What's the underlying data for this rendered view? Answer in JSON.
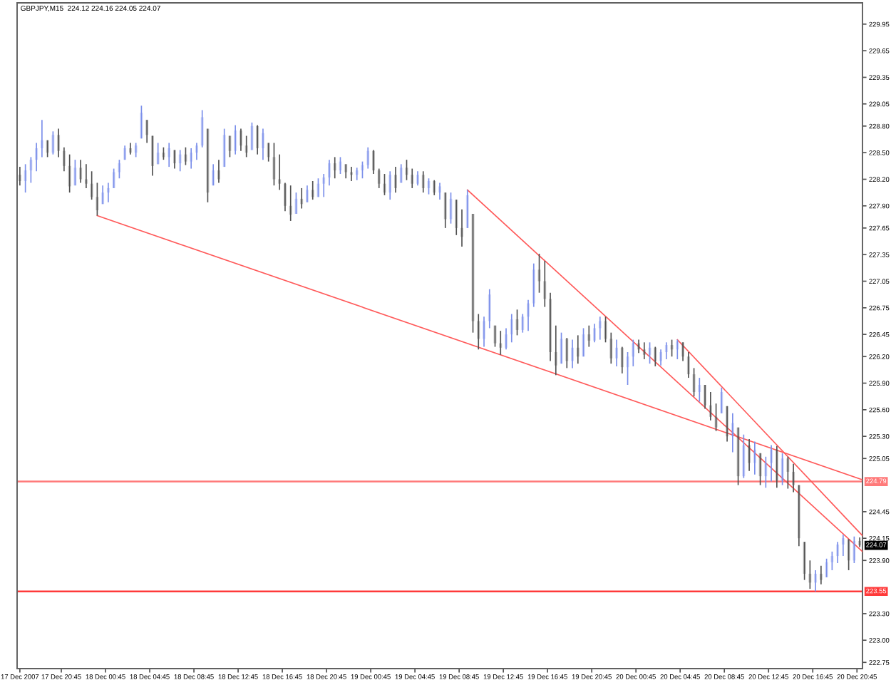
{
  "chart_data": {
    "type": "candlestick",
    "title": "GBPJPY,M15  224.12 224.16 224.05 224.07",
    "xlim": [
      "2007-12-17T16:45",
      "2007-12-20T21:15"
    ],
    "xticks": [
      {
        "value": "2007-12-17T17:00",
        "label": "17 Dec 2007"
      },
      {
        "value": "2007-12-17T20:45",
        "label": "17 Dec 20:45"
      },
      {
        "value": "2007-12-18T00:45",
        "label": "18 Dec 00:45"
      },
      {
        "value": "2007-12-18T04:45",
        "label": "18 Dec 04:45"
      },
      {
        "value": "2007-12-18T08:45",
        "label": "18 Dec 08:45"
      },
      {
        "value": "2007-12-18T12:45",
        "label": "18 Dec 12:45"
      },
      {
        "value": "2007-12-18T16:45",
        "label": "18 Dec 16:45"
      },
      {
        "value": "2007-12-18T20:45",
        "label": "18 Dec 20:45"
      },
      {
        "value": "2007-12-19T00:45",
        "label": "19 Dec 00:45"
      },
      {
        "value": "2007-12-19T04:45",
        "label": "19 Dec 04:45"
      },
      {
        "value": "2007-12-19T08:45",
        "label": "19 Dec 08:45"
      },
      {
        "value": "2007-12-19T12:45",
        "label": "19 Dec 12:45"
      },
      {
        "value": "2007-12-19T16:45",
        "label": "19 Dec 16:45"
      },
      {
        "value": "2007-12-19T20:45",
        "label": "19 Dec 20:45"
      },
      {
        "value": "2007-12-20T00:45",
        "label": "20 Dec 00:45"
      },
      {
        "value": "2007-12-20T04:45",
        "label": "20 Dec 04:45"
      },
      {
        "value": "2007-12-20T08:45",
        "label": "20 Dec 08:45"
      },
      {
        "value": "2007-12-20T12:45",
        "label": "20 Dec 12:45"
      },
      {
        "value": "2007-12-20T16:45",
        "label": "20 Dec 16:45"
      },
      {
        "value": "2007-12-20T20:45",
        "label": "20 Dec 20:45"
      }
    ],
    "ylim": [
      222.68,
      230.19
    ],
    "yticks": [
      {
        "value": 229.95,
        "label": "229.95"
      },
      {
        "value": 229.65,
        "label": "229.65"
      },
      {
        "value": 229.35,
        "label": "229.35"
      },
      {
        "value": 229.05,
        "label": "229.05"
      },
      {
        "value": 228.8,
        "label": "228.80"
      },
      {
        "value": 228.5,
        "label": "228.50"
      },
      {
        "value": 228.2,
        "label": "228.20"
      },
      {
        "value": 227.9,
        "label": "227.90"
      },
      {
        "value": 227.65,
        "label": "227.65"
      },
      {
        "value": 227.35,
        "label": "227.35"
      },
      {
        "value": 227.05,
        "label": "227.05"
      },
      {
        "value": 226.75,
        "label": "226.75"
      },
      {
        "value": 226.45,
        "label": "226.45"
      },
      {
        "value": 226.2,
        "label": "226.20"
      },
      {
        "value": 225.9,
        "label": "225.90"
      },
      {
        "value": 225.6,
        "label": "225.60"
      },
      {
        "value": 225.3,
        "label": "225.30"
      },
      {
        "value": 225.05,
        "label": "225.05"
      },
      {
        "value": 224.45,
        "label": "224.45"
      },
      {
        "value": 224.15,
        "label": "224.15"
      },
      {
        "value": 223.9,
        "label": "223.90"
      },
      {
        "value": 223.3,
        "label": "223.30"
      },
      {
        "value": 223.0,
        "label": "223.00"
      },
      {
        "value": 222.75,
        "label": "222.75"
      }
    ],
    "ref_lines": [
      {
        "axis": "y",
        "value": 224.79,
        "label": "224.79",
        "color": "#ff7a7a"
      },
      {
        "axis": "y",
        "value": 223.55,
        "label": "223.55",
        "color": "#ff3a3a"
      }
    ],
    "annotations": [
      {
        "text": "224.07",
        "y": 224.07
      }
    ],
    "series": [
      {
        "x": [
          "2007-12-17T17:00",
          "2007-12-17T17:30",
          "2007-12-17T18:00",
          "2007-12-17T18:30",
          "2007-12-17T19:00",
          "2007-12-17T19:30",
          "2007-12-17T20:00",
          "2007-12-17T20:30",
          "2007-12-17T21:00",
          "2007-12-17T21:30",
          "2007-12-17T22:00",
          "2007-12-17T22:30",
          "2007-12-17T23:00",
          "2007-12-17T23:30",
          "2007-12-18T00:00",
          "2007-12-18T00:30",
          "2007-12-18T01:00",
          "2007-12-18T01:30",
          "2007-12-18T02:00",
          "2007-12-18T02:30",
          "2007-12-18T03:00",
          "2007-12-18T03:30",
          "2007-12-18T04:00",
          "2007-12-18T04:30",
          "2007-12-18T05:00",
          "2007-12-18T05:30",
          "2007-12-18T06:00",
          "2007-12-18T06:30",
          "2007-12-18T07:00",
          "2007-12-18T07:30",
          "2007-12-18T08:00",
          "2007-12-18T08:30",
          "2007-12-18T09:00",
          "2007-12-18T09:30",
          "2007-12-18T10:00",
          "2007-12-18T10:30",
          "2007-12-18T11:00",
          "2007-12-18T11:30",
          "2007-12-18T12:00",
          "2007-12-18T12:30",
          "2007-12-18T13:00",
          "2007-12-18T13:30",
          "2007-12-18T14:00",
          "2007-12-18T14:30",
          "2007-12-18T15:00",
          "2007-12-18T15:30",
          "2007-12-18T16:00",
          "2007-12-18T16:30",
          "2007-12-18T17:00",
          "2007-12-18T17:30",
          "2007-12-18T18:00",
          "2007-12-18T18:30",
          "2007-12-18T19:00",
          "2007-12-18T19:30",
          "2007-12-18T20:00",
          "2007-12-18T20:30",
          "2007-12-18T21:00",
          "2007-12-18T21:30",
          "2007-12-18T22:00",
          "2007-12-18T22:30",
          "2007-12-18T23:00",
          "2007-12-18T23:30",
          "2007-12-19T00:00",
          "2007-12-19T00:30",
          "2007-12-19T01:00",
          "2007-12-19T01:30",
          "2007-12-19T02:00",
          "2007-12-19T02:30",
          "2007-12-19T03:00",
          "2007-12-19T03:30",
          "2007-12-19T04:00",
          "2007-12-19T04:30",
          "2007-12-19T05:00",
          "2007-12-19T05:30",
          "2007-12-19T06:00",
          "2007-12-19T06:30",
          "2007-12-19T07:00",
          "2007-12-19T07:30",
          "2007-12-19T08:00",
          "2007-12-19T08:30",
          "2007-12-19T09:00",
          "2007-12-19T09:30",
          "2007-12-19T10:00",
          "2007-12-19T10:30",
          "2007-12-19T11:00",
          "2007-12-19T11:30",
          "2007-12-19T12:00",
          "2007-12-19T12:30",
          "2007-12-19T13:00",
          "2007-12-19T13:30",
          "2007-12-19T14:00",
          "2007-12-19T14:30",
          "2007-12-19T15:00",
          "2007-12-19T15:30",
          "2007-12-19T16:00",
          "2007-12-19T16:30",
          "2007-12-19T17:00",
          "2007-12-19T17:30",
          "2007-12-19T18:00",
          "2007-12-19T18:30",
          "2007-12-19T19:00",
          "2007-12-19T19:30",
          "2007-12-19T20:00",
          "2007-12-19T20:30",
          "2007-12-19T21:00",
          "2007-12-19T21:30",
          "2007-12-19T22:00",
          "2007-12-19T22:30",
          "2007-12-19T23:00",
          "2007-12-19T23:30",
          "2007-12-20T00:00",
          "2007-12-20T00:30",
          "2007-12-20T01:00",
          "2007-12-20T01:30",
          "2007-12-20T02:00",
          "2007-12-20T02:30",
          "2007-12-20T03:00",
          "2007-12-20T03:30",
          "2007-12-20T04:00",
          "2007-12-20T04:30",
          "2007-12-20T05:00",
          "2007-12-20T05:30",
          "2007-12-20T06:00",
          "2007-12-20T06:30",
          "2007-12-20T07:00",
          "2007-12-20T07:30",
          "2007-12-20T08:00",
          "2007-12-20T08:30",
          "2007-12-20T09:00",
          "2007-12-20T09:30",
          "2007-12-20T10:00",
          "2007-12-20T10:30",
          "2007-12-20T11:00",
          "2007-12-20T11:30",
          "2007-12-20T12:00",
          "2007-12-20T12:30",
          "2007-12-20T13:00",
          "2007-12-20T13:30",
          "2007-12-20T14:00",
          "2007-12-20T14:30",
          "2007-12-20T15:00",
          "2007-12-20T15:30",
          "2007-12-20T16:00",
          "2007-12-20T16:30",
          "2007-12-20T17:00",
          "2007-12-20T17:30",
          "2007-12-20T18:00",
          "2007-12-20T18:30",
          "2007-12-20T19:00",
          "2007-12-20T19:30",
          "2007-12-20T20:00",
          "2007-12-20T20:30",
          "2007-12-20T21:00"
        ],
        "ohlc": [
          [
            228.25,
            228.34,
            228.13,
            228.18
          ],
          [
            228.18,
            228.37,
            228.05,
            228.3
          ],
          [
            228.3,
            228.45,
            228.16,
            228.42
          ],
          [
            228.42,
            228.61,
            228.29,
            228.55
          ],
          [
            228.55,
            228.87,
            228.45,
            228.64
          ],
          [
            228.64,
            228.64,
            228.45,
            228.5
          ],
          [
            228.5,
            228.74,
            228.48,
            228.7
          ],
          [
            228.7,
            228.77,
            228.45,
            228.52
          ],
          [
            228.52,
            228.56,
            228.29,
            228.35
          ],
          [
            228.35,
            228.48,
            228.05,
            228.12
          ],
          [
            228.13,
            228.42,
            228.13,
            228.33
          ],
          [
            228.33,
            228.42,
            228.16,
            228.2
          ],
          [
            228.2,
            228.37,
            228.1,
            228.15
          ],
          [
            228.15,
            228.29,
            227.97,
            228.0
          ],
          [
            228.0,
            228.16,
            227.79,
            227.85
          ],
          [
            227.92,
            228.13,
            227.92,
            228.05
          ],
          [
            228.05,
            228.16,
            227.94,
            228.1
          ],
          [
            228.1,
            228.32,
            228.1,
            228.28
          ],
          [
            228.28,
            228.42,
            228.21,
            228.38
          ],
          [
            228.42,
            228.58,
            228.42,
            228.55
          ],
          [
            228.55,
            228.61,
            228.48,
            228.5
          ],
          [
            228.5,
            228.61,
            228.45,
            228.58
          ],
          [
            228.66,
            229.03,
            228.66,
            228.95
          ],
          [
            228.87,
            228.87,
            228.61,
            228.7
          ],
          [
            228.69,
            228.69,
            228.24,
            228.35
          ],
          [
            228.37,
            228.61,
            228.37,
            228.5
          ],
          [
            228.5,
            228.56,
            228.42,
            228.45
          ],
          [
            228.45,
            228.61,
            228.34,
            228.55
          ],
          [
            228.53,
            228.53,
            228.32,
            228.38
          ],
          [
            228.38,
            228.53,
            228.29,
            228.48
          ],
          [
            228.48,
            228.56,
            228.36,
            228.4
          ],
          [
            228.4,
            228.55,
            228.32,
            228.5
          ],
          [
            228.5,
            228.61,
            228.42,
            228.58
          ],
          [
            228.58,
            228.98,
            228.56,
            228.9
          ],
          [
            228.77,
            228.77,
            227.94,
            228.05
          ],
          [
            228.13,
            228.37,
            228.13,
            228.3
          ],
          [
            228.3,
            228.42,
            228.16,
            228.2
          ],
          [
            228.34,
            228.77,
            228.34,
            228.7
          ],
          [
            228.69,
            228.69,
            228.45,
            228.52
          ],
          [
            228.52,
            228.81,
            228.48,
            228.75
          ],
          [
            228.75,
            228.77,
            228.52,
            228.58
          ],
          [
            228.58,
            228.69,
            228.45,
            228.5
          ],
          [
            228.53,
            228.84,
            228.53,
            228.8
          ],
          [
            228.8,
            228.81,
            228.48,
            228.55
          ],
          [
            228.55,
            228.77,
            228.42,
            228.72
          ],
          [
            228.61,
            228.61,
            228.4,
            228.45
          ],
          [
            228.45,
            228.61,
            228.13,
            228.2
          ],
          [
            228.2,
            228.48,
            228.08,
            228.15
          ],
          [
            228.15,
            228.16,
            227.84,
            227.9
          ],
          [
            227.9,
            228.13,
            227.73,
            227.8
          ],
          [
            227.81,
            228.05,
            227.81,
            227.98
          ],
          [
            227.98,
            228.1,
            227.87,
            227.92
          ],
          [
            227.94,
            228.13,
            227.94,
            228.08
          ],
          [
            228.08,
            228.18,
            227.97,
            228.0
          ],
          [
            228.0,
            228.21,
            228.0,
            228.15
          ],
          [
            228.15,
            228.26,
            228.0,
            228.22
          ],
          [
            228.22,
            228.42,
            228.13,
            228.38
          ],
          [
            228.38,
            228.45,
            228.21,
            228.3
          ],
          [
            228.3,
            228.45,
            228.26,
            228.4
          ],
          [
            228.37,
            228.37,
            228.21,
            228.28
          ],
          [
            228.28,
            228.34,
            228.18,
            228.25
          ],
          [
            228.25,
            228.33,
            228.19,
            228.3
          ],
          [
            228.3,
            228.4,
            228.21,
            228.36
          ],
          [
            228.36,
            228.56,
            228.32,
            228.52
          ],
          [
            228.52,
            228.53,
            228.26,
            228.3
          ],
          [
            228.3,
            228.32,
            228.1,
            228.15
          ],
          [
            228.15,
            228.26,
            228.02,
            228.05
          ],
          [
            228.05,
            228.29,
            227.97,
            228.25
          ],
          [
            228.25,
            228.34,
            228.05,
            228.1
          ],
          [
            228.16,
            228.37,
            228.16,
            228.33
          ],
          [
            228.33,
            228.42,
            228.19,
            228.25
          ],
          [
            228.25,
            228.32,
            228.1,
            228.15
          ],
          [
            228.15,
            228.29,
            228.13,
            228.25
          ],
          [
            228.25,
            228.29,
            228.05,
            228.1
          ],
          [
            228.1,
            228.21,
            228.03,
            228.18
          ],
          [
            228.18,
            228.19,
            228.02,
            228.05
          ],
          [
            228.05,
            228.16,
            227.97,
            228.12
          ],
          [
            228.05,
            228.05,
            227.65,
            227.75
          ],
          [
            227.75,
            228.05,
            227.7,
            227.98
          ],
          [
            227.97,
            227.97,
            227.57,
            227.65
          ],
          [
            227.65,
            227.86,
            227.44,
            227.55
          ],
          [
            227.65,
            228.08,
            227.65,
            228.02
          ],
          [
            227.81,
            227.81,
            226.47,
            226.6
          ],
          [
            226.6,
            226.68,
            226.28,
            226.4
          ],
          [
            226.4,
            226.65,
            226.31,
            226.6
          ],
          [
            226.6,
            226.96,
            226.52,
            226.9
          ],
          [
            226.55,
            226.55,
            226.31,
            226.35
          ],
          [
            226.35,
            226.49,
            226.22,
            226.3
          ],
          [
            226.3,
            226.52,
            226.28,
            226.45
          ],
          [
            226.45,
            226.68,
            226.36,
            226.62
          ],
          [
            226.62,
            226.73,
            226.44,
            226.5
          ],
          [
            226.5,
            226.68,
            226.47,
            226.65
          ],
          [
            226.65,
            226.84,
            226.49,
            226.8
          ],
          [
            226.8,
            227.25,
            226.76,
            227.18
          ],
          [
            227.18,
            227.36,
            226.92,
            227.05
          ],
          [
            227.05,
            227.28,
            226.76,
            226.85
          ],
          [
            226.85,
            226.92,
            226.15,
            226.25
          ],
          [
            226.25,
            226.55,
            225.99,
            226.1
          ],
          [
            226.12,
            226.47,
            226.12,
            226.4
          ],
          [
            226.4,
            226.41,
            226.07,
            226.15
          ],
          [
            226.15,
            226.39,
            226.07,
            226.3
          ],
          [
            226.3,
            226.44,
            226.12,
            226.2
          ],
          [
            226.2,
            226.52,
            226.2,
            226.45
          ],
          [
            226.45,
            226.55,
            226.31,
            226.38
          ],
          [
            226.38,
            226.57,
            226.36,
            226.52
          ],
          [
            226.52,
            226.65,
            226.39,
            226.6
          ],
          [
            226.6,
            226.65,
            226.36,
            226.4
          ],
          [
            226.4,
            226.47,
            226.12,
            226.18
          ],
          [
            226.18,
            226.39,
            226.09,
            226.3
          ],
          [
            226.3,
            226.31,
            226.01,
            226.08
          ],
          [
            226.08,
            226.25,
            225.88,
            226.2
          ],
          [
            226.2,
            226.39,
            226.09,
            226.35
          ],
          [
            226.35,
            226.39,
            226.24,
            226.28
          ],
          [
            226.28,
            226.36,
            226.17,
            226.22
          ],
          [
            226.22,
            226.36,
            226.12,
            226.3
          ],
          [
            226.3,
            226.31,
            226.09,
            226.15
          ],
          [
            226.15,
            226.28,
            226.1,
            226.25
          ],
          [
            226.25,
            226.36,
            226.17,
            226.33
          ],
          [
            226.33,
            226.39,
            226.2,
            226.28
          ],
          [
            226.28,
            226.39,
            226.17,
            226.37
          ],
          [
            226.36,
            226.36,
            226.15,
            226.2
          ],
          [
            226.2,
            226.25,
            225.96,
            226.0
          ],
          [
            226.0,
            226.07,
            225.75,
            225.8
          ],
          [
            225.8,
            225.96,
            225.69,
            225.88
          ],
          [
            225.88,
            225.88,
            225.61,
            225.65
          ],
          [
            225.65,
            225.8,
            225.48,
            225.52
          ],
          [
            225.52,
            225.67,
            225.36,
            225.4
          ],
          [
            225.56,
            225.85,
            225.56,
            225.8
          ],
          [
            225.64,
            225.64,
            225.24,
            225.3
          ],
          [
            225.3,
            225.56,
            225.12,
            225.45
          ],
          [
            225.4,
            225.4,
            224.75,
            224.85
          ],
          [
            224.85,
            225.32,
            224.83,
            225.2
          ],
          [
            225.2,
            225.27,
            224.91,
            225.0
          ],
          [
            225.0,
            225.24,
            224.87,
            225.15
          ],
          [
            225.11,
            225.11,
            224.75,
            224.85
          ],
          [
            224.85,
            225.07,
            224.72,
            225.0
          ],
          [
            225.0,
            225.2,
            224.79,
            225.15
          ],
          [
            225.15,
            225.19,
            224.72,
            224.8
          ],
          [
            224.8,
            225.11,
            224.75,
            225.05
          ],
          [
            225.05,
            225.07,
            224.71,
            224.9
          ],
          [
            224.9,
            224.99,
            224.67,
            224.75
          ],
          [
            224.75,
            224.75,
            224.06,
            224.15
          ],
          [
            224.11,
            224.11,
            223.68,
            223.75
          ],
          [
            223.75,
            223.9,
            223.58,
            223.65
          ],
          [
            223.65,
            223.79,
            223.55,
            223.75
          ],
          [
            223.75,
            223.84,
            223.63,
            223.68
          ],
          [
            223.71,
            223.92,
            223.71,
            223.88
          ],
          [
            223.88,
            224.0,
            223.79,
            223.95
          ],
          [
            223.95,
            224.11,
            223.87,
            224.08
          ],
          [
            224.08,
            224.19,
            223.95,
            224.15
          ],
          [
            224.14,
            224.14,
            223.79,
            223.9
          ],
          [
            223.9,
            224.17,
            223.87,
            224.12
          ],
          [
            224.12,
            224.16,
            224.05,
            224.07
          ]
        ],
        "colors": [
          "#505050",
          "#7a8eea",
          "#7a8eea",
          "#7a8eea",
          "#7a8eea",
          "#505050",
          "#7a8eea",
          "#505050",
          "#505050",
          "#505050",
          "#7a8eea",
          "#505050",
          "#505050",
          "#505050",
          "#505050",
          "#7a8eea",
          "#7a8eea",
          "#7a8eea",
          "#7a8eea",
          "#7a8eea",
          "#505050",
          "#7a8eea",
          "#7a8eea",
          "#505050",
          "#505050",
          "#7a8eea",
          "#505050",
          "#7a8eea",
          "#505050",
          "#7a8eea",
          "#505050",
          "#7a8eea",
          "#7a8eea",
          "#7a8eea",
          "#505050",
          "#7a8eea",
          "#505050",
          "#7a8eea",
          "#505050",
          "#7a8eea",
          "#505050",
          "#505050",
          "#7a8eea",
          "#505050",
          "#7a8eea",
          "#505050",
          "#505050",
          "#505050",
          "#505050",
          "#505050",
          "#7a8eea",
          "#505050",
          "#7a8eea",
          "#505050",
          "#7a8eea",
          "#7a8eea",
          "#7a8eea",
          "#505050",
          "#7a8eea",
          "#505050",
          "#505050",
          "#7a8eea",
          "#7a8eea",
          "#7a8eea",
          "#505050",
          "#505050",
          "#505050",
          "#7a8eea",
          "#505050",
          "#7a8eea",
          "#505050",
          "#505050",
          "#7a8eea",
          "#505050",
          "#7a8eea",
          "#505050",
          "#7a8eea",
          "#505050",
          "#7a8eea",
          "#505050",
          "#505050",
          "#7a8eea",
          "#505050",
          "#505050",
          "#7a8eea",
          "#7a8eea",
          "#505050",
          "#505050",
          "#7a8eea",
          "#7a8eea",
          "#505050",
          "#7a8eea",
          "#7a8eea",
          "#7a8eea",
          "#505050",
          "#505050",
          "#505050",
          "#505050",
          "#7a8eea",
          "#505050",
          "#7a8eea",
          "#505050",
          "#7a8eea",
          "#505050",
          "#7a8eea",
          "#7a8eea",
          "#505050",
          "#505050",
          "#7a8eea",
          "#505050",
          "#7a8eea",
          "#7a8eea",
          "#505050",
          "#505050",
          "#7a8eea",
          "#505050",
          "#7a8eea",
          "#7a8eea",
          "#505050",
          "#7a8eea",
          "#505050",
          "#505050",
          "#505050",
          "#7a8eea",
          "#505050",
          "#505050",
          "#505050",
          "#7a8eea",
          "#505050",
          "#7a8eea",
          "#505050",
          "#7a8eea",
          "#505050",
          "#7a8eea",
          "#505050",
          "#7a8eea",
          "#7a8eea",
          "#505050",
          "#7a8eea",
          "#505050",
          "#505050",
          "#505050",
          "#505050",
          "#505050",
          "#7a8eea",
          "#505050",
          "#7a8eea",
          "#7a8eea",
          "#7a8eea",
          "#7a8eea",
          "#505050",
          "#7a8eea",
          "#505050"
        ]
      },
      {
        "type": "line",
        "color": "#ff5a5a",
        "x": [
          "2007-12-18T00:00",
          "2007-12-20T21:15"
        ],
        "values": [
          227.79,
          224.81
        ]
      },
      {
        "type": "line",
        "color": "#ff5a5a",
        "x": [
          "2007-12-19T09:30",
          "2007-12-20T21:15"
        ],
        "values": [
          228.08,
          224.0
        ]
      },
      {
        "type": "line",
        "color": "#ff5a5a",
        "x": [
          "2007-12-20T04:30",
          "2007-12-20T21:15"
        ],
        "values": [
          226.39,
          224.18
        ]
      }
    ]
  }
}
